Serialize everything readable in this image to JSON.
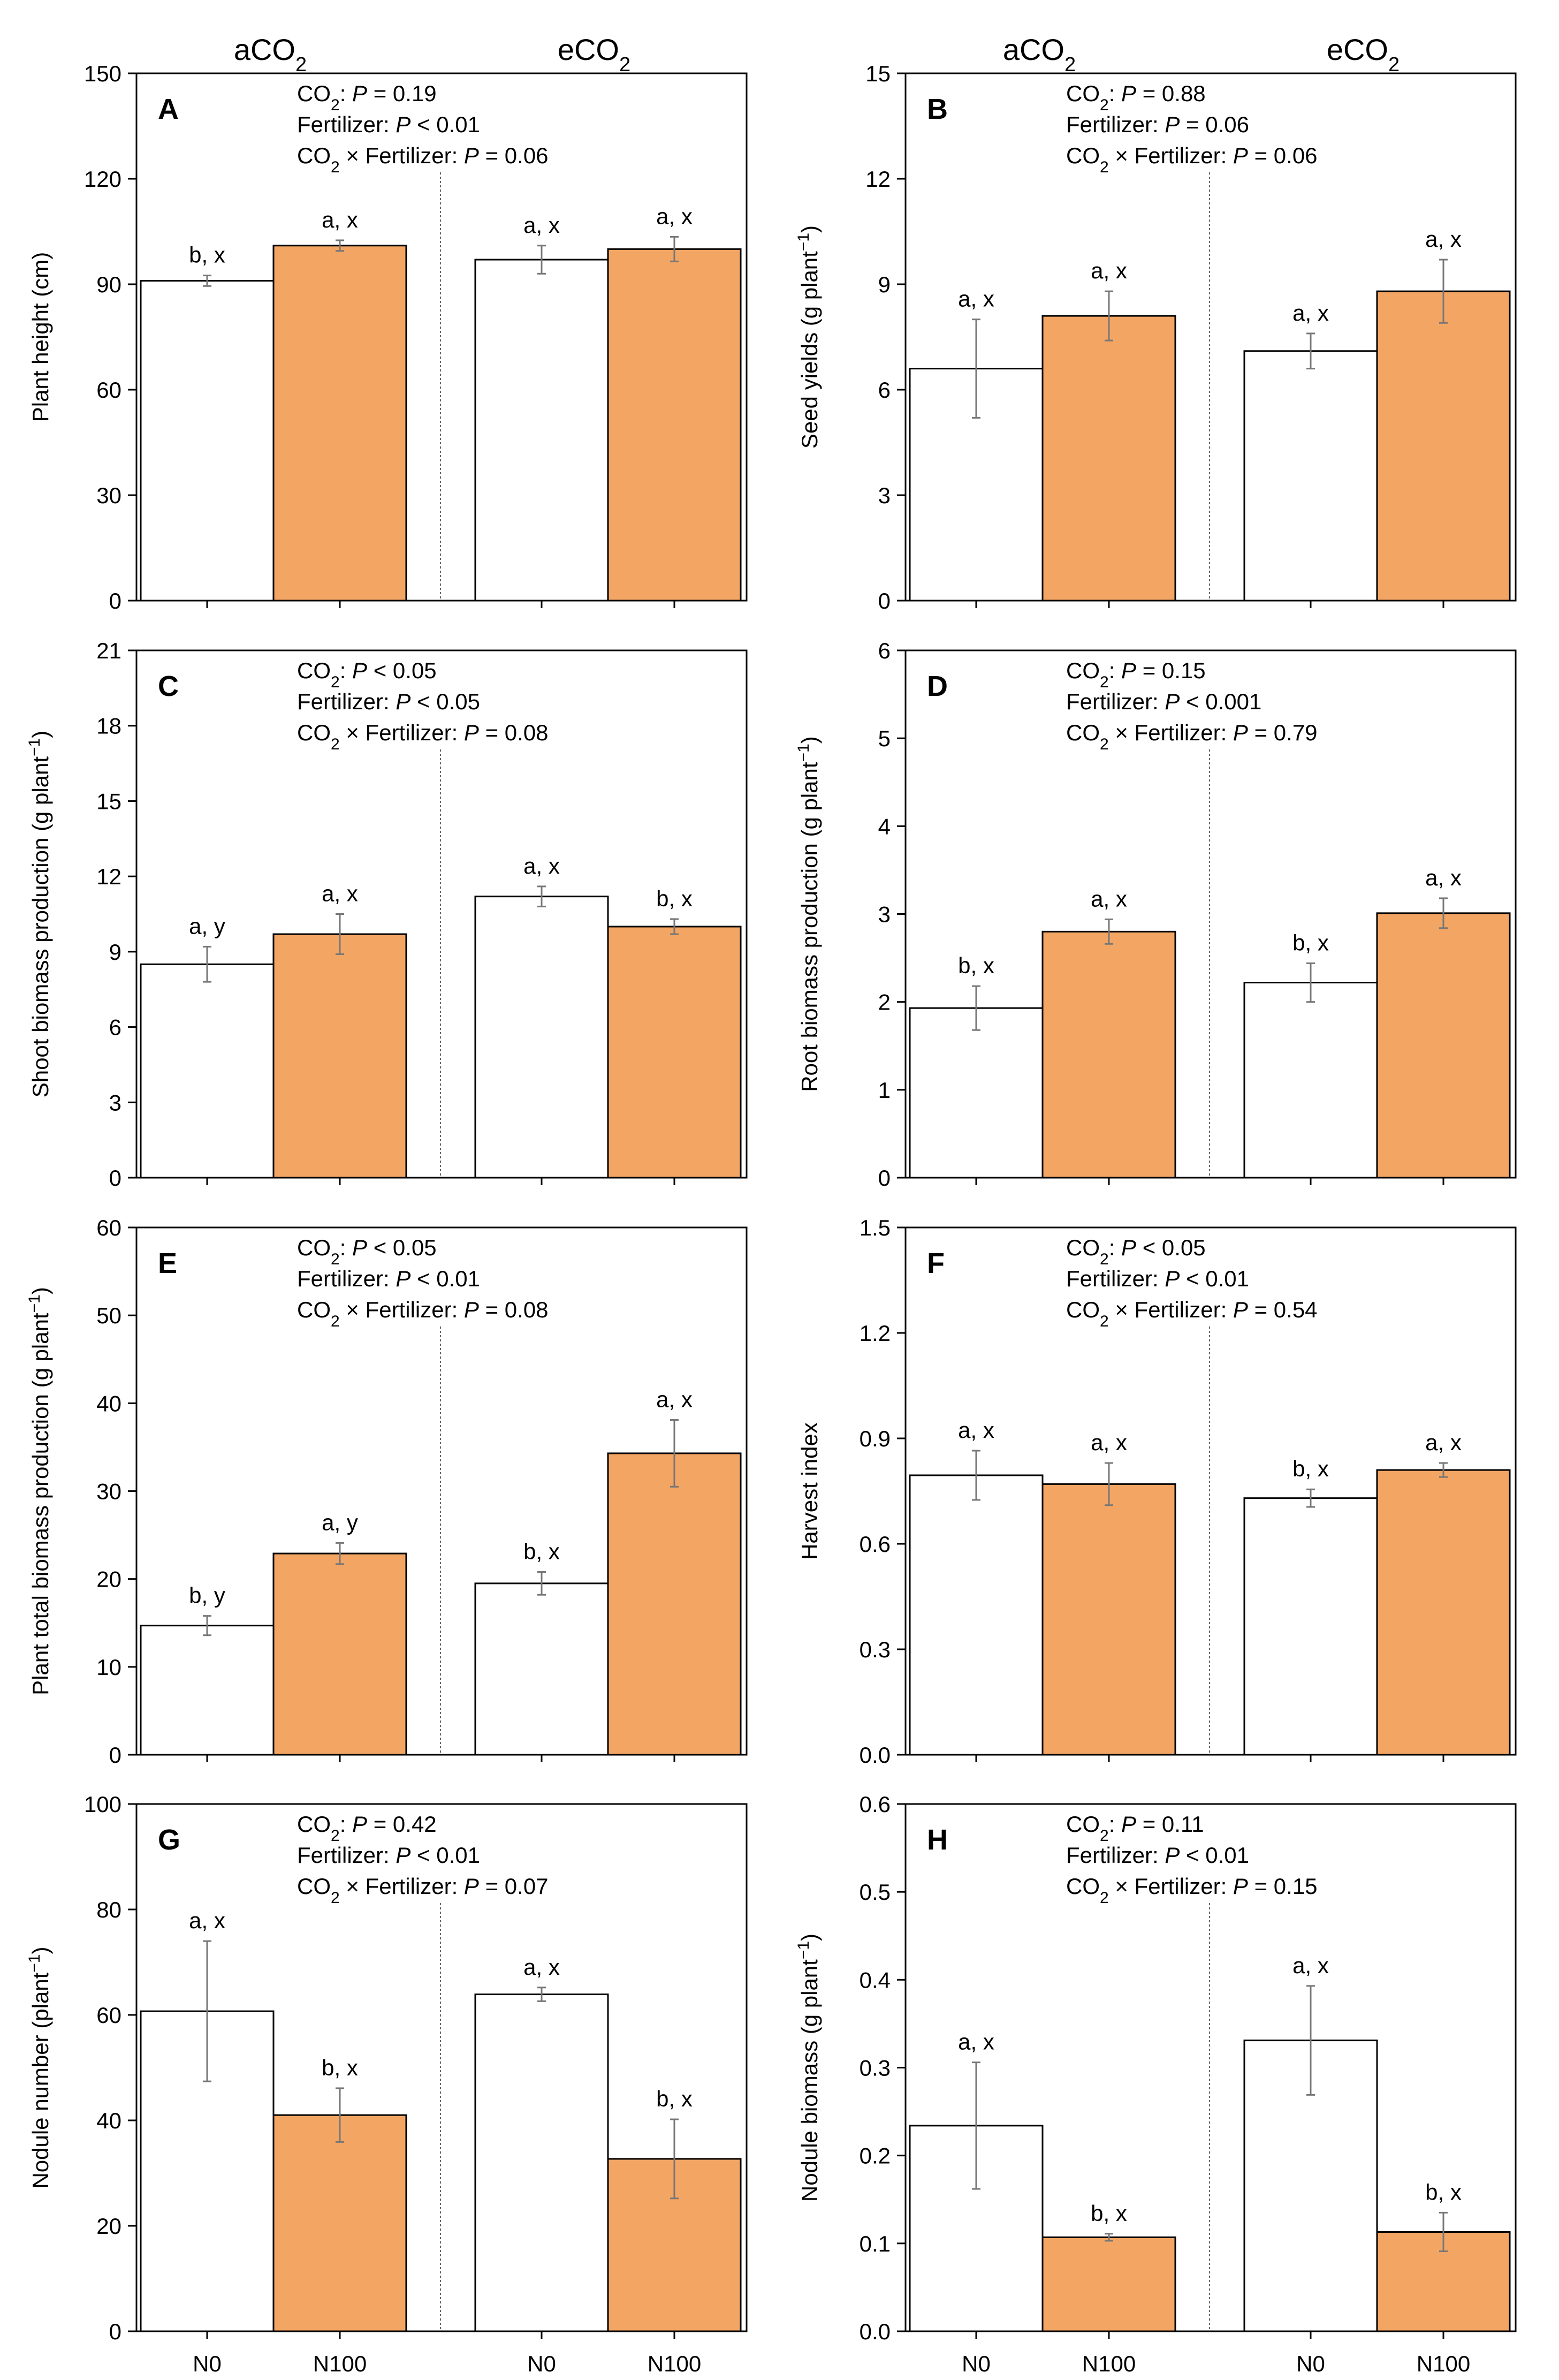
{
  "figure": {
    "headers": {
      "ambient": "aCO",
      "elevated": "eCO",
      "sub": "2"
    },
    "x_categories": [
      "N0",
      "N100",
      "N0",
      "N100"
    ],
    "colors": {
      "control": "#ffffff",
      "fertilized": "#f3a664",
      "axis": "#000000",
      "error": "#777777"
    }
  },
  "chart_data": [
    {
      "id": "A",
      "type": "bar",
      "ylabel_main": "Plant height (cm)",
      "ylabel_unit": "",
      "ylim": [
        0,
        150
      ],
      "yticks": [
        0,
        30,
        60,
        90,
        120,
        150
      ],
      "tick_decimals": 0,
      "categories": [
        "N0",
        "N100",
        "N0",
        "N100"
      ],
      "groups": [
        "aCO2",
        "aCO2",
        "eCO2",
        "eCO2"
      ],
      "values": [
        91,
        101,
        97,
        100
      ],
      "errors": [
        1.5,
        1.5,
        4,
        3.5
      ],
      "labels": [
        "b, x",
        "a, x",
        "a, x",
        "a, x"
      ],
      "stats": [
        {
          "name": "CO",
          "sub": "2",
          "rel": " = ",
          "p": "0.19"
        },
        {
          "name": "Fertilizer",
          "rel": " < ",
          "p": "0.01"
        },
        {
          "name": "CO",
          "sub": "2",
          "suffix": " × Fertilizer",
          "rel": " = ",
          "p": "0.06"
        }
      ]
    },
    {
      "id": "B",
      "type": "bar",
      "ylabel_main": "Seed yields (g plant",
      "ylabel_unit": "−1",
      "ylim": [
        0,
        15
      ],
      "yticks": [
        0,
        3,
        6,
        9,
        12,
        15
      ],
      "tick_decimals": 0,
      "categories": [
        "N0",
        "N100",
        "N0",
        "N100"
      ],
      "groups": [
        "aCO2",
        "aCO2",
        "eCO2",
        "eCO2"
      ],
      "values": [
        6.6,
        8.1,
        7.1,
        8.8
      ],
      "errors": [
        1.4,
        0.7,
        0.5,
        0.9
      ],
      "labels": [
        "a, x",
        "a, x",
        "a, x",
        "a, x"
      ],
      "stats": [
        {
          "name": "CO",
          "sub": "2",
          "rel": " = ",
          "p": "0.88"
        },
        {
          "name": "Fertilizer",
          "rel": " = ",
          "p": "0.06"
        },
        {
          "name": "CO",
          "sub": "2",
          "suffix": " × Fertilizer",
          "rel": " = ",
          "p": "0.06"
        }
      ]
    },
    {
      "id": "C",
      "type": "bar",
      "ylabel_main": "Shoot biomass production (g plant",
      "ylabel_unit": "−1",
      "ylim": [
        0,
        21
      ],
      "yticks": [
        0,
        3,
        6,
        9,
        12,
        15,
        18,
        21
      ],
      "tick_decimals": 0,
      "categories": [
        "N0",
        "N100",
        "N0",
        "N100"
      ],
      "groups": [
        "aCO2",
        "aCO2",
        "eCO2",
        "eCO2"
      ],
      "values": [
        8.5,
        9.7,
        11.2,
        10.0
      ],
      "errors": [
        0.7,
        0.8,
        0.4,
        0.3
      ],
      "labels": [
        "a, y",
        "a, x",
        "a, x",
        "b, x"
      ],
      "stats": [
        {
          "name": "CO",
          "sub": "2",
          "rel": " < ",
          "p": "0.05"
        },
        {
          "name": "Fertilizer",
          "rel": " < ",
          "p": "0.05"
        },
        {
          "name": "CO",
          "sub": "2",
          "suffix": " × Fertilizer",
          "rel": " = ",
          "p": "0.08"
        }
      ]
    },
    {
      "id": "D",
      "type": "bar",
      "ylabel_main": "Root  biomass production (g plant",
      "ylabel_unit": "−1",
      "ylim": [
        0,
        6
      ],
      "yticks": [
        0,
        1,
        2,
        3,
        4,
        5,
        6
      ],
      "tick_decimals": 0,
      "categories": [
        "N0",
        "N100",
        "N0",
        "N100"
      ],
      "groups": [
        "aCO2",
        "aCO2",
        "eCO2",
        "eCO2"
      ],
      "values": [
        1.93,
        2.8,
        2.22,
        3.01
      ],
      "errors": [
        0.25,
        0.14,
        0.22,
        0.17
      ],
      "labels": [
        "b, x",
        "a, x",
        "b, x",
        "a, x"
      ],
      "stats": [
        {
          "name": "CO",
          "sub": "2",
          "rel": " = ",
          "p": "0.15"
        },
        {
          "name": "Fertilizer",
          "rel": " < ",
          "p": "0.001"
        },
        {
          "name": "CO",
          "sub": "2",
          "suffix": " × Fertilizer",
          "rel": " = ",
          "p": "0.79"
        }
      ]
    },
    {
      "id": "E",
      "type": "bar",
      "ylabel_main": "Plant total biomass production (g plant",
      "ylabel_unit": "−1",
      "ylim": [
        0,
        60
      ],
      "yticks": [
        0,
        10,
        20,
        30,
        40,
        50,
        60
      ],
      "tick_decimals": 0,
      "categories": [
        "N0",
        "N100",
        "N0",
        "N100"
      ],
      "groups": [
        "aCO2",
        "aCO2",
        "eCO2",
        "eCO2"
      ],
      "values": [
        14.7,
        22.9,
        19.5,
        34.3
      ],
      "errors": [
        1.1,
        1.2,
        1.3,
        3.8
      ],
      "labels": [
        "b, y",
        "a, y",
        "b, x",
        "a, x"
      ],
      "stats": [
        {
          "name": "CO",
          "sub": "2",
          "rel": " < ",
          "p": "0.05"
        },
        {
          "name": "Fertilizer",
          "rel": " < ",
          "p": "0.01"
        },
        {
          "name": "CO",
          "sub": "2",
          "suffix": " × Fertilizer",
          "rel": " = ",
          "p": "0.08"
        }
      ]
    },
    {
      "id": "F",
      "type": "bar",
      "ylabel_main": "Harvest index",
      "ylabel_unit": "",
      "ylim": [
        0,
        1.5
      ],
      "yticks": [
        0,
        0.3,
        0.6,
        0.9,
        1.2,
        1.5
      ],
      "tick_decimals": 1,
      "categories": [
        "N0",
        "N100",
        "N0",
        "N100"
      ],
      "groups": [
        "aCO2",
        "aCO2",
        "eCO2",
        "eCO2"
      ],
      "values": [
        0.795,
        0.77,
        0.73,
        0.81
      ],
      "errors": [
        0.07,
        0.06,
        0.025,
        0.02
      ],
      "labels": [
        "a, x",
        "a, x",
        "b, x",
        "a, x"
      ],
      "stats": [
        {
          "name": "CO",
          "sub": "2",
          "rel": " < ",
          "p": "0.05"
        },
        {
          "name": "Fertilizer",
          "rel": " < ",
          "p": "0.01"
        },
        {
          "name": "CO",
          "sub": "2",
          "suffix": " × Fertilizer",
          "rel": " = ",
          "p": "0.54"
        }
      ]
    },
    {
      "id": "G",
      "type": "bar",
      "ylabel_main": "Nodule number (plant",
      "ylabel_unit": "−1",
      "ylim": [
        0,
        100
      ],
      "yticks": [
        0,
        20,
        40,
        60,
        80,
        100
      ],
      "tick_decimals": 0,
      "categories": [
        "N0",
        "N100",
        "N0",
        "N100"
      ],
      "groups": [
        "aCO2",
        "aCO2",
        "eCO2",
        "eCO2"
      ],
      "values": [
        60.7,
        41.0,
        63.9,
        32.7
      ],
      "errors": [
        13.3,
        5.1,
        1.3,
        7.5
      ],
      "labels": [
        "a, x",
        "b, x",
        "a, x",
        "b, x"
      ],
      "stats": [
        {
          "name": "CO",
          "sub": "2",
          "rel": " = ",
          "p": "0.42"
        },
        {
          "name": "Fertilizer",
          "rel": " < ",
          "p": "0.01"
        },
        {
          "name": "CO",
          "sub": "2",
          "suffix": " × Fertilizer",
          "rel": " = ",
          "p": "0.07"
        }
      ]
    },
    {
      "id": "H",
      "type": "bar",
      "ylabel_main": "Nodule biomass (g plant",
      "ylabel_unit": "−1",
      "ylim": [
        0,
        0.6
      ],
      "yticks": [
        0,
        0.1,
        0.2,
        0.3,
        0.4,
        0.5,
        0.6
      ],
      "tick_decimals": 1,
      "categories": [
        "N0",
        "N100",
        "N0",
        "N100"
      ],
      "groups": [
        "aCO2",
        "aCO2",
        "eCO2",
        "eCO2"
      ],
      "values": [
        0.234,
        0.107,
        0.331,
        0.113
      ],
      "errors": [
        0.072,
        0.004,
        0.062,
        0.022
      ],
      "labels": [
        "a, x",
        "b, x",
        "a, x",
        "b, x"
      ],
      "stats": [
        {
          "name": "CO",
          "sub": "2",
          "rel": " = ",
          "p": "0.11"
        },
        {
          "name": "Fertilizer",
          "rel": " < ",
          "p": "0.01"
        },
        {
          "name": "CO",
          "sub": "2",
          "suffix": " × Fertilizer",
          "rel": " = ",
          "p": "0.15"
        }
      ]
    }
  ]
}
